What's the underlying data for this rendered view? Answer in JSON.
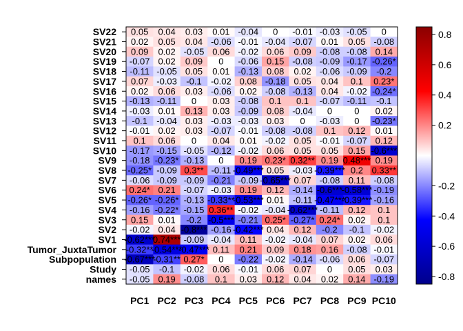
{
  "chart_data": {
    "type": "heatmap",
    "title": "",
    "xlabel": "",
    "ylabel": "",
    "columns": [
      "PC1",
      "PC2",
      "PC3",
      "PC4",
      "PC5",
      "PC6",
      "PC7",
      "PC8",
      "PC9",
      "PC10"
    ],
    "rows": [
      "SV22",
      "SV21",
      "SV20",
      "SV19",
      "SV18",
      "SV17",
      "SV16",
      "SV15",
      "SV14",
      "SV13",
      "SV12",
      "SV11",
      "SV10",
      "SV9",
      "SV8",
      "SV7",
      "SV6",
      "SV5",
      "SV4",
      "SV3",
      "SV2",
      "SV1",
      "Tumor_JuxtaTumor",
      "Subpopulation",
      "Study",
      "names"
    ],
    "values": [
      [
        0.05,
        0.04,
        0.03,
        0.01,
        -0.04,
        0,
        -0.01,
        -0.03,
        -0.05,
        0
      ],
      [
        0.02,
        0.05,
        0.04,
        -0.06,
        -0.01,
        -0.04,
        -0.07,
        0.01,
        0.05,
        -0.08
      ],
      [
        0.09,
        0.02,
        -0.05,
        0.06,
        -0.02,
        0.06,
        0.09,
        -0.08,
        -0.08,
        0.14
      ],
      [
        -0.07,
        0.02,
        0.09,
        0,
        -0.06,
        0.15,
        -0.08,
        -0.09,
        -0.17,
        -0.26
      ],
      [
        -0.11,
        -0.05,
        0.05,
        0.01,
        -0.13,
        0.08,
        0.02,
        -0.06,
        -0.09,
        -0.2
      ],
      [
        0.07,
        -0.03,
        -0.1,
        -0.02,
        0.08,
        -0.18,
        0.05,
        0.04,
        0.1,
        0.23
      ],
      [
        0.02,
        0.06,
        0.03,
        -0.06,
        0.02,
        -0.08,
        -0.13,
        0.04,
        -0.02,
        -0.24
      ],
      [
        -0.13,
        -0.11,
        0,
        0.03,
        -0.08,
        0.1,
        0.1,
        -0.07,
        -0.11,
        -0.1
      ],
      [
        -0.03,
        0.01,
        0.13,
        0.03,
        -0.09,
        0.08,
        -0.04,
        0,
        0,
        0.02
      ],
      [
        -0.1,
        -0.04,
        0.03,
        -0.03,
        -0.03,
        0.03,
        0,
        -0.03,
        0,
        -0.23
      ],
      [
        -0.01,
        0.02,
        0.03,
        -0.07,
        -0.01,
        -0.08,
        -0.08,
        0.1,
        0.12,
        0.01
      ],
      [
        0.1,
        0.06,
        0,
        0.04,
        0.01,
        -0.02,
        0.05,
        -0.01,
        -0.07,
        0.12
      ],
      [
        -0.17,
        -0.15,
        -0.05,
        -0.12,
        -0.02,
        0.06,
        0.05,
        0.05,
        0.15,
        -0.6
      ],
      [
        -0.18,
        -0.23,
        -0.13,
        0,
        0.19,
        0.23,
        0.32,
        0.19,
        0.48,
        0.19
      ],
      [
        -0.25,
        -0.09,
        0.3,
        -0.11,
        -0.49,
        0.05,
        -0.03,
        -0.39,
        0.2,
        0.33
      ],
      [
        -0.06,
        -0.09,
        -0.09,
        -0.21,
        -0.09,
        -0.65,
        0.07,
        -0.08,
        0.11,
        -0.08
      ],
      [
        0.24,
        0.21,
        -0.07,
        -0.03,
        0.19,
        0.12,
        -0.14,
        -0.6,
        -0.58,
        -0.19
      ],
      [
        -0.26,
        -0.26,
        -0.13,
        -0.33,
        -0.53,
        0.01,
        -0.11,
        -0.47,
        -0.39,
        -0.16
      ],
      [
        -0.16,
        -0.22,
        -0.15,
        0.36,
        -0.02,
        -0.04,
        -0.62,
        -0.11,
        0.12,
        0.1
      ],
      [
        0.15,
        0.01,
        -0.2,
        -0.5,
        -0.21,
        0.25,
        -0.27,
        0.24,
        0.02,
        0.1
      ],
      [
        -0.02,
        0.04,
        -0.8,
        -0.16,
        -0.42,
        0.04,
        0.12,
        -0.2,
        -0.1,
        -0.02
      ],
      [
        -0.62,
        0.74,
        -0.09,
        -0.04,
        0.11,
        -0.02,
        -0.04,
        0.07,
        0.02,
        0.06
      ],
      [
        -0.32,
        -0.54,
        -0.47,
        0.11,
        0.21,
        0.09,
        0.18,
        0.16,
        -0.08,
        -0.01
      ],
      [
        -0.67,
        -0.31,
        0.27,
        0,
        -0.22,
        -0.02,
        -0.14,
        -0.06,
        0.06,
        -0.07
      ],
      [
        -0.05,
        -0.1,
        -0.02,
        0.06,
        -0.01,
        0.06,
        0.07,
        0,
        0.05,
        0.03
      ],
      [
        -0.05,
        0.19,
        -0.08,
        0.1,
        0.03,
        0.12,
        0.04,
        0.02,
        0.14,
        -0.19
      ]
    ],
    "labels": [
      [
        "0.05",
        "0.04",
        "0.03",
        "0.01",
        "-0.04",
        "0",
        "-0.01",
        "-0.03",
        "-0.05",
        "0"
      ],
      [
        "0.02",
        "0.05",
        "0.04",
        "-0.06",
        "-0.01",
        "-0.04",
        "-0.07",
        "0.01",
        "0.05",
        "-0.08"
      ],
      [
        "0.09",
        "0.02",
        "-0.05",
        "0.06",
        "-0.02",
        "0.06",
        "0.09",
        "-0.08",
        "-0.08",
        "0.14"
      ],
      [
        "-0.07",
        "0.02",
        "0.09",
        "0",
        "-0.06",
        "0.15",
        "-0.08",
        "-0.09",
        "-0.17",
        "-0.26*"
      ],
      [
        "-0.11",
        "-0.05",
        "0.05",
        "0.01",
        "-0.13",
        "0.08",
        "0.02",
        "-0.06",
        "-0.09",
        "-0.2"
      ],
      [
        "0.07",
        "-0.03",
        "-0.1",
        "-0.02",
        "0.08",
        "-0.18",
        "0.05",
        "0.04",
        "0.1",
        "0.23*"
      ],
      [
        "0.02",
        "0.06",
        "0.03",
        "-0.06",
        "0.02",
        "-0.08",
        "-0.13",
        "0.04",
        "-0.02",
        "-0.24*"
      ],
      [
        "-0.13",
        "-0.11",
        "0",
        "0.03",
        "-0.08",
        "0.1",
        "0.1",
        "-0.07",
        "-0.11",
        "-0.1"
      ],
      [
        "-0.03",
        "0.01",
        "0.13",
        "0.03",
        "-0.09",
        "0.08",
        "-0.04",
        "0",
        "0",
        "0.02"
      ],
      [
        "-0.1",
        "-0.04",
        "0.03",
        "-0.03",
        "-0.03",
        "0.03",
        "0",
        "-0.03",
        "0",
        "-0.23*"
      ],
      [
        "-0.01",
        "0.02",
        "0.03",
        "-0.07",
        "-0.01",
        "-0.08",
        "-0.08",
        "0.1",
        "0.12",
        "0.01"
      ],
      [
        "0.1",
        "0.06",
        "0",
        "0.04",
        "0.01",
        "-0.02",
        "0.05",
        "-0.01",
        "-0.07",
        "0.12"
      ],
      [
        "-0.17",
        "-0.15",
        "-0.05",
        "-0.12",
        "-0.02",
        "0.06",
        "0.05",
        "0.05",
        "0.15",
        "-0.6***"
      ],
      [
        "-0.18",
        "-0.23*",
        "-0.13",
        "0",
        "0.19",
        "0.23*",
        "0.32**",
        "0.19",
        "0.48***",
        "0.19"
      ],
      [
        "-0.25*",
        "-0.09",
        "0.3**",
        "-0.11",
        "-0.49***",
        "0.05",
        "-0.03",
        "-0.39***",
        "0.2",
        "0.33**"
      ],
      [
        "-0.06",
        "-0.09",
        "-0.09",
        "-0.21",
        "-0.09",
        "-0.65***",
        "0.07",
        "-0.08",
        "0.11",
        "-0.08"
      ],
      [
        "0.24*",
        "0.21",
        "-0.07",
        "-0.03",
        "0.19",
        "0.12",
        "-0.14",
        "-0.6***",
        "-0.58***",
        "-0.19"
      ],
      [
        "-0.26*",
        "-0.26*",
        "-0.13",
        "-0.33**",
        "-0.53***",
        "0.01",
        "-0.11",
        "-0.47***",
        "-0.39***",
        "-0.16"
      ],
      [
        "-0.16",
        "-0.22*",
        "-0.15",
        "0.36**",
        "-0.02",
        "-0.04",
        "-0.62***",
        "-0.11",
        "0.12",
        "0.1"
      ],
      [
        "0.15",
        "0.01",
        "-0.2",
        "-0.5***",
        "-0.21",
        "0.25*",
        "-0.27*",
        "0.24*",
        "0.02",
        "0.1"
      ],
      [
        "-0.02",
        "0.04",
        "-0.8***",
        "-0.16",
        "-0.42***",
        "0.04",
        "0.12",
        "-0.2",
        "-0.1",
        "-0.02"
      ],
      [
        "-0.62***",
        "0.74***",
        "-0.09",
        "-0.04",
        "0.11",
        "-0.02",
        "-0.04",
        "0.07",
        "0.02",
        "0.06"
      ],
      [
        "-0.32**",
        "-0.54***",
        "-0.47***",
        "0.11",
        "0.21",
        "0.09",
        "0.18",
        "0.16",
        "-0.08",
        "-0.01"
      ],
      [
        "-0.67***",
        "-0.31**",
        "0.27*",
        "0",
        "-0.22",
        "-0.02",
        "-0.14",
        "-0.06",
        "0.06",
        "-0.07"
      ],
      [
        "-0.05",
        "-0.1",
        "-0.02",
        "0.06",
        "-0.01",
        "0.06",
        "0.07",
        "0",
        "0.05",
        "0.03"
      ],
      [
        "-0.05",
        "0.19",
        "-0.08",
        "0.1",
        "0.03",
        "0.12",
        "0.04",
        "0.02",
        "0.14",
        "-0.19"
      ]
    ],
    "colorbar": {
      "min": -0.85,
      "max": 0.85,
      "ticks": [
        0.8,
        0.6,
        0.4,
        0.2,
        -0.2,
        -0.4,
        -0.6,
        -0.8
      ],
      "tick_labels": [
        "0.8",
        "0.6",
        "0.4",
        "0.2",
        "-0.2",
        "-0.4",
        "-0.6",
        "-0.8"
      ],
      "colors": {
        "low": "#00008B",
        "mid_low": "#0000FF",
        "center": "#FFFFFF",
        "mid_high": "#FF0000",
        "high": "#8B0000"
      }
    },
    "grid": false,
    "legend_placement": "right"
  }
}
